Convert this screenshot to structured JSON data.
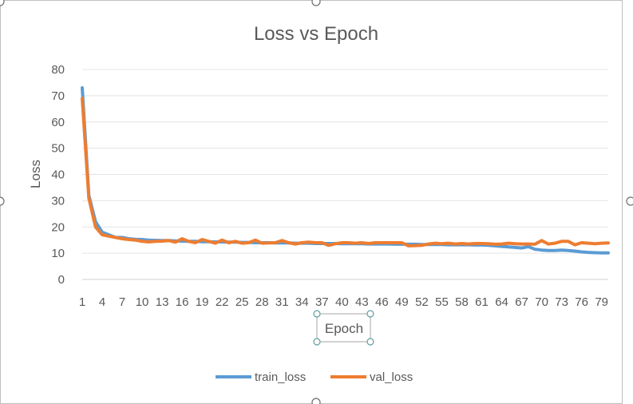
{
  "chart_data": {
    "type": "line",
    "title": "Loss vs Epoch",
    "xlabel": "Epoch",
    "ylabel": "Loss",
    "ylim": [
      0,
      80
    ],
    "yticks": [
      0,
      10,
      20,
      30,
      40,
      50,
      60,
      70,
      80
    ],
    "xlim": [
      1,
      80
    ],
    "xtick_labels": [
      "1",
      "4",
      "7",
      "10",
      "13",
      "16",
      "19",
      "22",
      "25",
      "28",
      "31",
      "34",
      "37",
      "40",
      "43",
      "46",
      "49",
      "52",
      "55",
      "58",
      "61",
      "64",
      "67",
      "70",
      "73",
      "76",
      "79"
    ],
    "grid": true,
    "legend_position": "bottom",
    "x": [
      1,
      2,
      3,
      4,
      5,
      6,
      7,
      8,
      9,
      10,
      11,
      12,
      13,
      14,
      15,
      16,
      17,
      18,
      19,
      20,
      21,
      22,
      23,
      24,
      25,
      26,
      27,
      28,
      29,
      30,
      31,
      32,
      33,
      34,
      35,
      36,
      37,
      38,
      39,
      40,
      41,
      42,
      43,
      44,
      45,
      46,
      47,
      48,
      49,
      50,
      51,
      52,
      53,
      54,
      55,
      56,
      57,
      58,
      59,
      60,
      61,
      62,
      63,
      64,
      65,
      66,
      67,
      68,
      69,
      70,
      71,
      72,
      73,
      74,
      75,
      76,
      77,
      78,
      79,
      80
    ],
    "series": [
      {
        "name": "train_loss",
        "color": "#5B9BD5",
        "values": [
          73,
          32,
          22,
          18,
          17,
          16,
          16,
          15.5,
          15.3,
          15.2,
          15,
          14.9,
          14.8,
          14.8,
          14.7,
          14.6,
          14.5,
          14.5,
          14.4,
          14.4,
          14.3,
          14.3,
          14.2,
          14.2,
          14.1,
          14.1,
          14.0,
          14.0,
          14.0,
          13.9,
          13.9,
          13.9,
          13.8,
          13.8,
          13.8,
          13.7,
          13.7,
          13.7,
          13.7,
          13.6,
          13.6,
          13.6,
          13.6,
          13.5,
          13.5,
          13.5,
          13.5,
          13.4,
          13.4,
          13.4,
          13.4,
          13.3,
          13.3,
          13.3,
          13.3,
          13.2,
          13.2,
          13.2,
          13.2,
          13.1,
          13.1,
          13.0,
          12.8,
          12.6,
          12.4,
          12.2,
          12,
          12.5,
          11.5,
          11.2,
          11,
          11,
          11.2,
          11,
          10.8,
          10.5,
          10.3,
          10.2,
          10.1,
          10.1
        ]
      },
      {
        "name": "val_loss",
        "color": "#ED7D31",
        "values": [
          69,
          31,
          20,
          17,
          16.5,
          16,
          15.5,
          15.2,
          15,
          14.5,
          14.3,
          14.5,
          14.6,
          14.8,
          14.2,
          15.5,
          14.5,
          14,
          15.2,
          14.5,
          13.8,
          15,
          14,
          14.5,
          13.8,
          14,
          15,
          13.8,
          13.9,
          14,
          14.8,
          14,
          13.5,
          14,
          14.2,
          14,
          14,
          13,
          13.6,
          14,
          14,
          13.8,
          14,
          13.7,
          14,
          14,
          14,
          14,
          14,
          12.8,
          12.9,
          13,
          13.5,
          13.8,
          13.6,
          13.8,
          13.5,
          13.7,
          13.5,
          13.7,
          13.7,
          13.6,
          13.4,
          13.5,
          13.8,
          13.6,
          13.5,
          13.5,
          13.4,
          14.8,
          13.5,
          13.8,
          14.5,
          14.5,
          13.2,
          14,
          13.8,
          13.6,
          13.8,
          13.9
        ]
      }
    ]
  }
}
